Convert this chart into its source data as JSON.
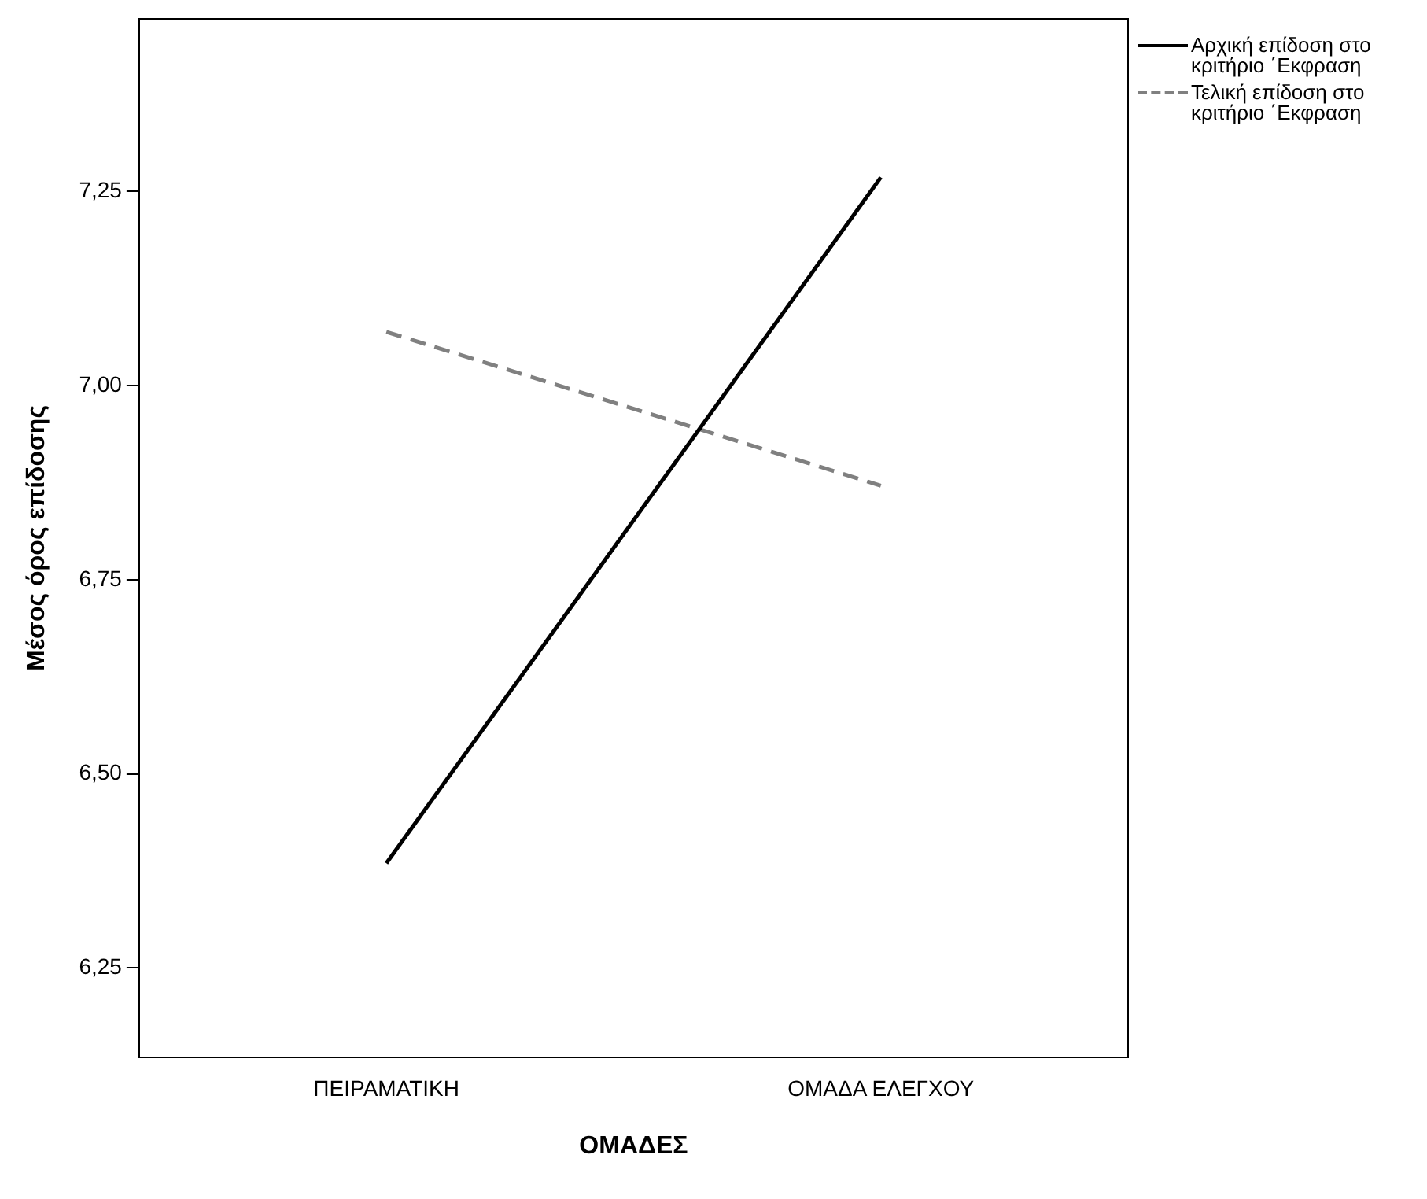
{
  "chart_data": {
    "type": "line",
    "xlabel": "ΟΜΑΔΕΣ",
    "ylabel": "Μέσος όρος επίδοσης",
    "categories": [
      "ΠΕΙΡΑΜΑΤΙΚΗ",
      "ΟΜΑΔΑ ΕΛΕΓΧΟΥ"
    ],
    "series": [
      {
        "name": "Αρχική επίδοση στο κριτήριο ΄Εκφραση",
        "color": "#000000",
        "line_style": "solid",
        "values": [
          6.385,
          7.268
        ]
      },
      {
        "name": "Τελική επίδοση στο κριτήριο ΄Εκφραση",
        "color": "#808080",
        "line_style": "dashed",
        "values": [
          7.069,
          6.871
        ]
      }
    ],
    "ylim": [
      6.135,
      7.472
    ],
    "yticks": [
      {
        "value": 6.25,
        "label": "6,25"
      },
      {
        "value": 6.5,
        "label": "6,50"
      },
      {
        "value": 6.75,
        "label": "6,75"
      },
      {
        "value": 7.0,
        "label": "7,00"
      },
      {
        "value": 7.25,
        "label": "7,25"
      }
    ],
    "grid": false,
    "legend": "top right",
    "marker": "none"
  }
}
